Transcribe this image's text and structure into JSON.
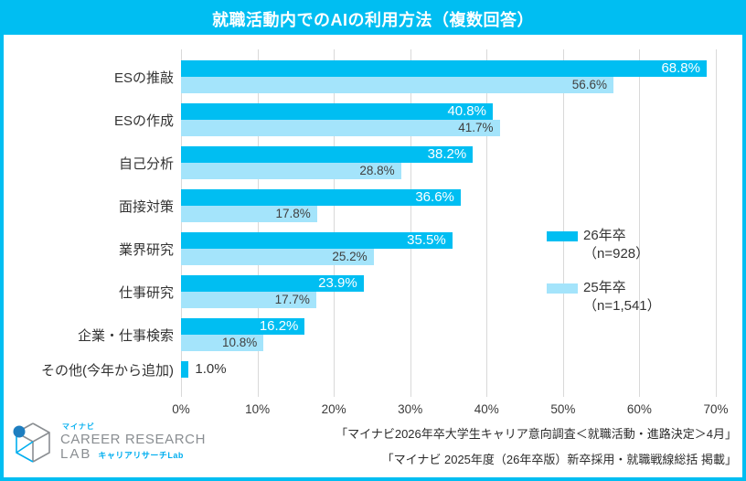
{
  "title": "就職活動内でのAIの利用方法（複数回答）",
  "chart_data": {
    "type": "bar",
    "orientation": "horizontal",
    "title": "就職活動内でのAIの利用方法（複数回答）",
    "categories": [
      "ESの推敲",
      "ESの作成",
      "自己分析",
      "面接対策",
      "業界研究",
      "仕事研究",
      "企業・仕事検索",
      "その他(今年から追加)"
    ],
    "series": [
      {
        "name": "26年卒（n=928）",
        "color": "#00BEF2",
        "values": [
          68.8,
          40.8,
          38.2,
          36.6,
          35.5,
          23.9,
          16.2,
          1.0
        ]
      },
      {
        "name": "25年卒（n=1,541）",
        "color": "#A4E4FB",
        "values": [
          56.6,
          41.7,
          28.8,
          17.8,
          25.2,
          17.7,
          10.8,
          null
        ]
      }
    ],
    "xlim": [
      0,
      70
    ],
    "tick_labels": [
      "0%",
      "10%",
      "20%",
      "30%",
      "40%",
      "50%",
      "60%",
      "70%"
    ],
    "grid": "vertical",
    "legend_position": "middle-right",
    "value_label_format": "one-decimal-percent"
  },
  "legend": [
    {
      "label": "26年卒",
      "n": "（n=928）"
    },
    {
      "label": "25年卒",
      "n": "（n=1,541）"
    }
  ],
  "footer": {
    "logo": {
      "brand_small": "マイナビ",
      "line1": "CAREER RESEARCH",
      "line2": "LAB",
      "line2_sub": "キャリアリサーチLab"
    },
    "sources": [
      "「マイナビ2026年卒大学生キャリア意向調査＜就職活動・進路決定＞4月」",
      "「マイナビ 2025年度（26年卒版）新卒採用・就職戦線総括 掲載」"
    ]
  },
  "colors": {
    "primary": "#00BEF2",
    "secondary": "#A4E4FB",
    "border": "#00BEF2",
    "grid": "#D9D9D9",
    "value_label_on_dark": "#FFFFFF",
    "value_label_on_light": "#404040",
    "logo_gray": "#8A8E92",
    "logo_blue": "#00AEEF",
    "logo_sphere": "#1E7EC0"
  }
}
